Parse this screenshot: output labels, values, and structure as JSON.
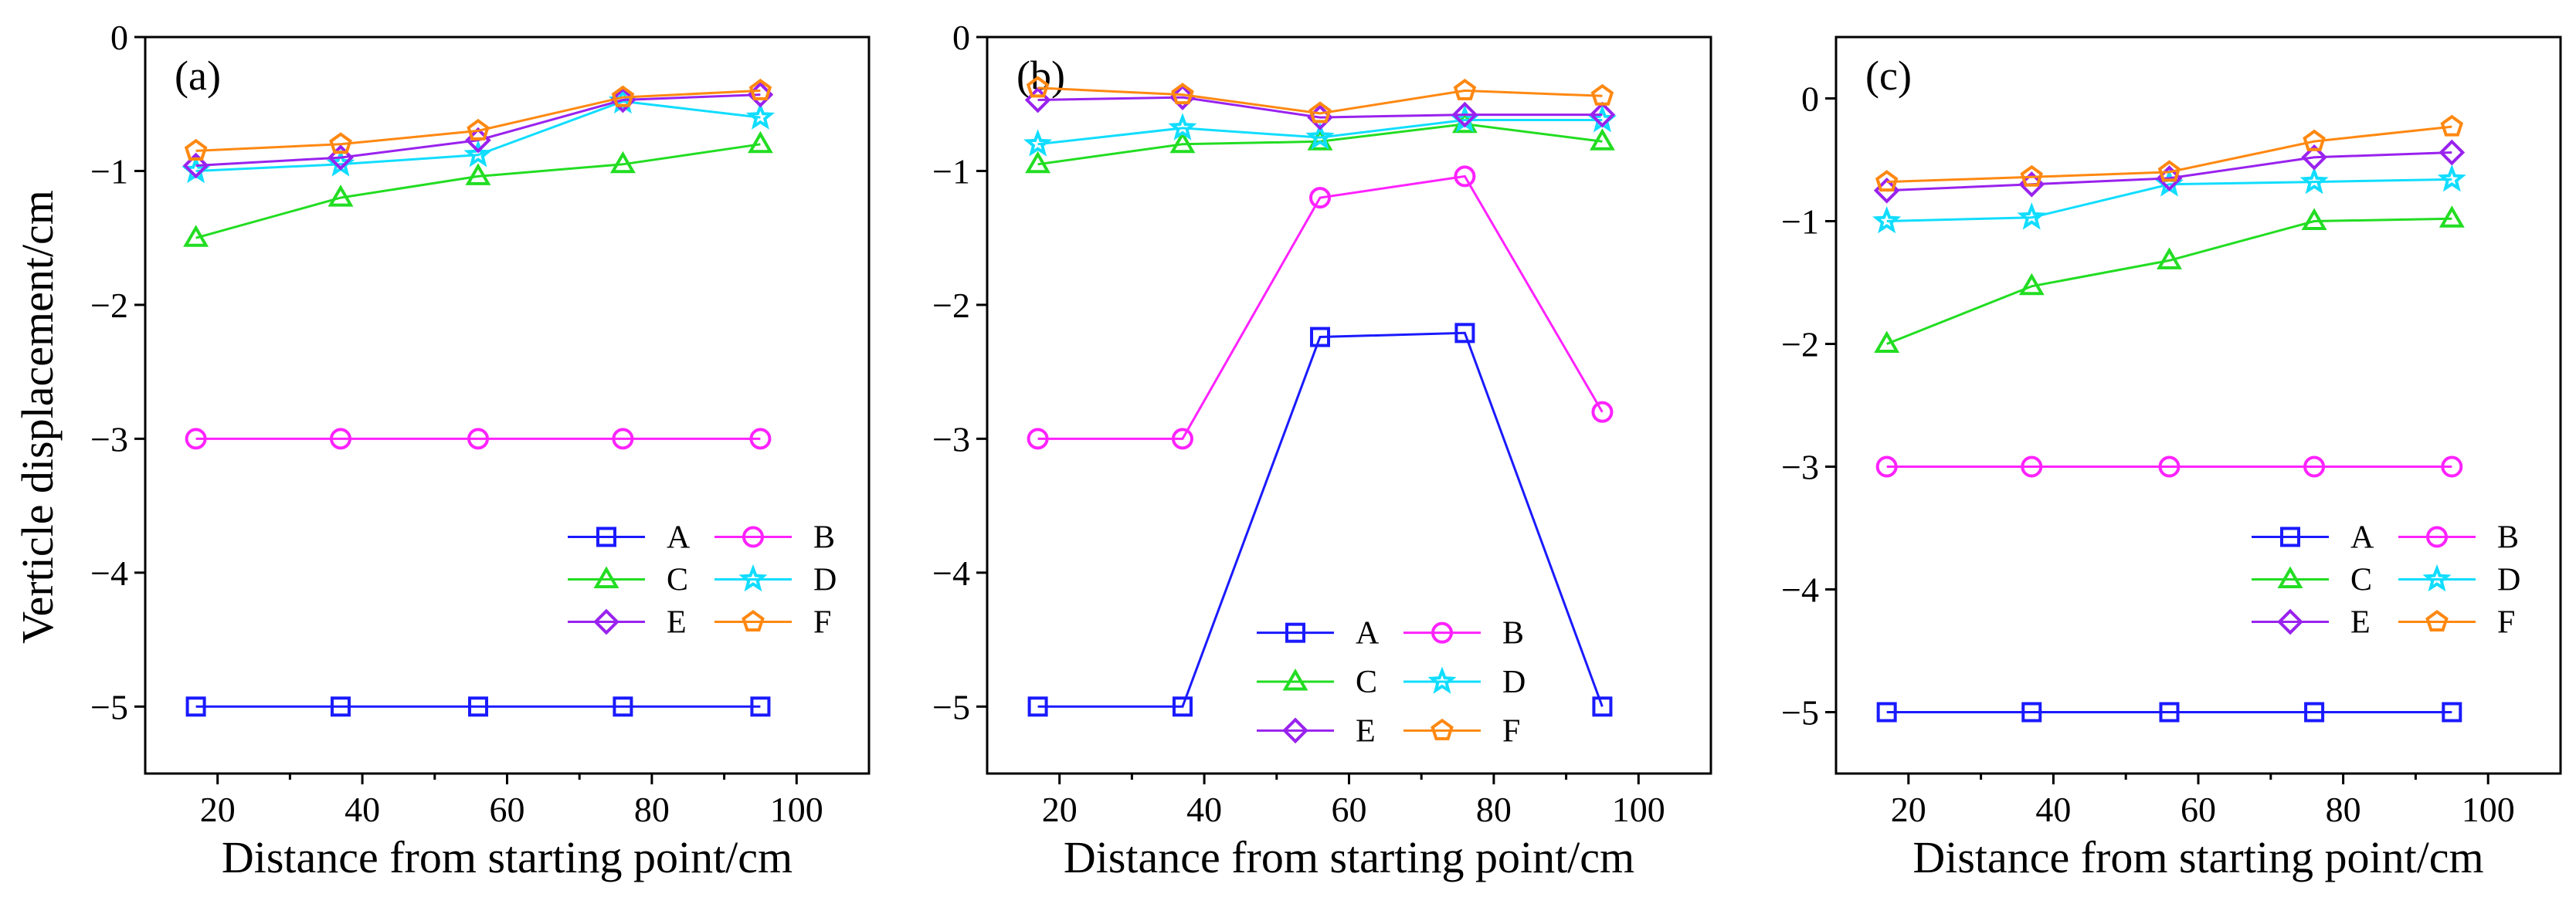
{
  "figure": {
    "ylabel": "Verticle displacement/cm"
  },
  "chart_data": [
    {
      "type": "line",
      "panel_label": "(a)",
      "xlabel": "Distance from starting point/cm",
      "ylabel": "Verticle displacement/cm",
      "xlim": [
        10,
        110
      ],
      "ylim": [
        -5.5,
        0
      ],
      "xticks": [
        20,
        40,
        60,
        80,
        100
      ],
      "yticks": [
        0,
        -1,
        -2,
        -3,
        -4,
        -5
      ],
      "legend_position": "bottom-right",
      "x": [
        17,
        37,
        56,
        76,
        95
      ],
      "series": [
        {
          "name": "A",
          "color": "#1a1aff",
          "marker": "square",
          "values": [
            -5,
            -5,
            -5,
            -5,
            -5
          ]
        },
        {
          "name": "B",
          "color": "#ff22ff",
          "marker": "circle",
          "values": [
            -3,
            -3,
            -3,
            -3,
            -3
          ]
        },
        {
          "name": "C",
          "color": "#22dd22",
          "marker": "triangle",
          "values": [
            -1.5,
            -1.2,
            -1.04,
            -0.95,
            -0.8
          ]
        },
        {
          "name": "D",
          "color": "#11ddff",
          "marker": "star",
          "values": [
            -1.0,
            -0.95,
            -0.88,
            -0.48,
            -0.6
          ]
        },
        {
          "name": "E",
          "color": "#9922ee",
          "marker": "diamond",
          "values": [
            -0.96,
            -0.9,
            -0.77,
            -0.47,
            -0.43
          ]
        },
        {
          "name": "F",
          "color": "#ff8811",
          "marker": "pentagon",
          "values": [
            -0.85,
            -0.8,
            -0.7,
            -0.45,
            -0.4
          ]
        }
      ]
    },
    {
      "type": "line",
      "panel_label": "(b)",
      "xlabel": "Distance from starting point/cm",
      "ylabel": "",
      "xlim": [
        10,
        110
      ],
      "ylim": [
        -5.5,
        0
      ],
      "xticks": [
        20,
        40,
        60,
        80,
        100
      ],
      "yticks": [
        0,
        -1,
        -2,
        -3,
        -4,
        -5
      ],
      "legend_position": "bottom-center",
      "x": [
        17,
        37,
        56,
        76,
        95
      ],
      "series": [
        {
          "name": "A",
          "color": "#1a1aff",
          "marker": "square",
          "values": [
            -5,
            -5,
            -2.24,
            -2.21,
            -5
          ]
        },
        {
          "name": "B",
          "color": "#ff22ff",
          "marker": "circle",
          "values": [
            -3,
            -3,
            -1.2,
            -1.04,
            -2.8
          ]
        },
        {
          "name": "C",
          "color": "#22dd22",
          "marker": "triangle",
          "values": [
            -0.95,
            -0.8,
            -0.78,
            -0.65,
            -0.78
          ]
        },
        {
          "name": "D",
          "color": "#11ddff",
          "marker": "star",
          "values": [
            -0.8,
            -0.68,
            -0.75,
            -0.62,
            -0.62
          ]
        },
        {
          "name": "E",
          "color": "#9922ee",
          "marker": "diamond",
          "values": [
            -0.47,
            -0.45,
            -0.6,
            -0.58,
            -0.58
          ]
        },
        {
          "name": "F",
          "color": "#ff8811",
          "marker": "pentagon",
          "values": [
            -0.38,
            -0.43,
            -0.57,
            -0.4,
            -0.44
          ]
        }
      ]
    },
    {
      "type": "line",
      "panel_label": "(c)",
      "xlabel": "Distance from starting point/cm",
      "ylabel": "",
      "xlim": [
        10,
        110
      ],
      "ylim": [
        -5.5,
        0.5
      ],
      "xticks": [
        20,
        40,
        60,
        80,
        100
      ],
      "yticks": [
        0,
        -1,
        -2,
        -3,
        -4,
        -5
      ],
      "legend_position": "bottom-right",
      "x": [
        17,
        37,
        56,
        76,
        95
      ],
      "series": [
        {
          "name": "A",
          "color": "#1a1aff",
          "marker": "square",
          "values": [
            -5,
            -5,
            -5,
            -5,
            -5
          ]
        },
        {
          "name": "B",
          "color": "#ff22ff",
          "marker": "circle",
          "values": [
            -3,
            -3,
            -3,
            -3,
            -3
          ]
        },
        {
          "name": "C",
          "color": "#22dd22",
          "marker": "triangle",
          "values": [
            -2.0,
            -1.53,
            -1.32,
            -1.0,
            -0.98
          ]
        },
        {
          "name": "D",
          "color": "#11ddff",
          "marker": "star",
          "values": [
            -1.0,
            -0.97,
            -0.7,
            -0.68,
            -0.66
          ]
        },
        {
          "name": "E",
          "color": "#9922ee",
          "marker": "diamond",
          "values": [
            -0.75,
            -0.7,
            -0.65,
            -0.48,
            -0.44
          ]
        },
        {
          "name": "F",
          "color": "#ff8811",
          "marker": "pentagon",
          "values": [
            -0.68,
            -0.64,
            -0.6,
            -0.35,
            -0.23
          ]
        }
      ]
    }
  ]
}
